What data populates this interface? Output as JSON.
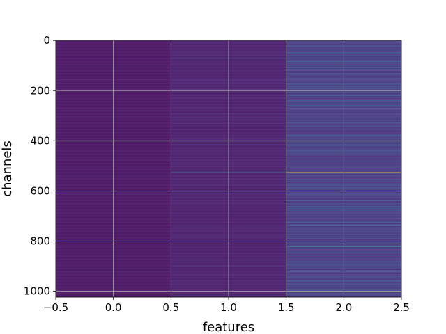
{
  "chart_data": {
    "type": "heatmap",
    "colormap": "viridis",
    "xlabel": "features",
    "ylabel": "channels",
    "xlim": [
      -0.5,
      2.5
    ],
    "ylim": [
      1023.5,
      -0.5
    ],
    "y_axis_inverted": true,
    "n_columns": 3,
    "n_rows": 1024,
    "grid": true,
    "grid_color": "#b0b0b0",
    "x_ticks": [
      -0.5,
      0.0,
      0.5,
      1.0,
      1.5,
      2.0,
      2.5
    ],
    "x_tick_labels": [
      "−0.5",
      "0.0",
      "0.5",
      "1.0",
      "1.5",
      "2.0",
      "2.5"
    ],
    "y_ticks": [
      0,
      200,
      400,
      600,
      800,
      1000
    ],
    "y_tick_labels": [
      "0",
      "200",
      "400",
      "600",
      "800",
      "1000"
    ],
    "columns": [
      {
        "feature": 0,
        "base_value": 0.03,
        "variation": 0.04,
        "bright_channels": [
          [
            800,
            0.35
          ]
        ]
      },
      {
        "feature": 1,
        "base_value": 0.05,
        "variation": 0.07,
        "bright_channels": [
          [
            525,
            0.45
          ],
          [
            70,
            0.25
          ],
          [
            610,
            0.22
          ],
          [
            900,
            0.2
          ]
        ]
      },
      {
        "feature": 2,
        "base_value": 0.12,
        "variation": 0.2,
        "bright_channels": [
          [
            525,
            1.0
          ],
          [
            822,
            0.62
          ],
          [
            85,
            0.42
          ],
          [
            100,
            0.35
          ],
          [
            160,
            0.32
          ],
          [
            175,
            0.3
          ],
          [
            320,
            0.28
          ],
          [
            440,
            0.3
          ],
          [
            600,
            0.35
          ],
          [
            640,
            0.28
          ],
          [
            800,
            0.3
          ],
          [
            960,
            0.32
          ],
          [
            980,
            0.3
          ]
        ]
      }
    ]
  }
}
